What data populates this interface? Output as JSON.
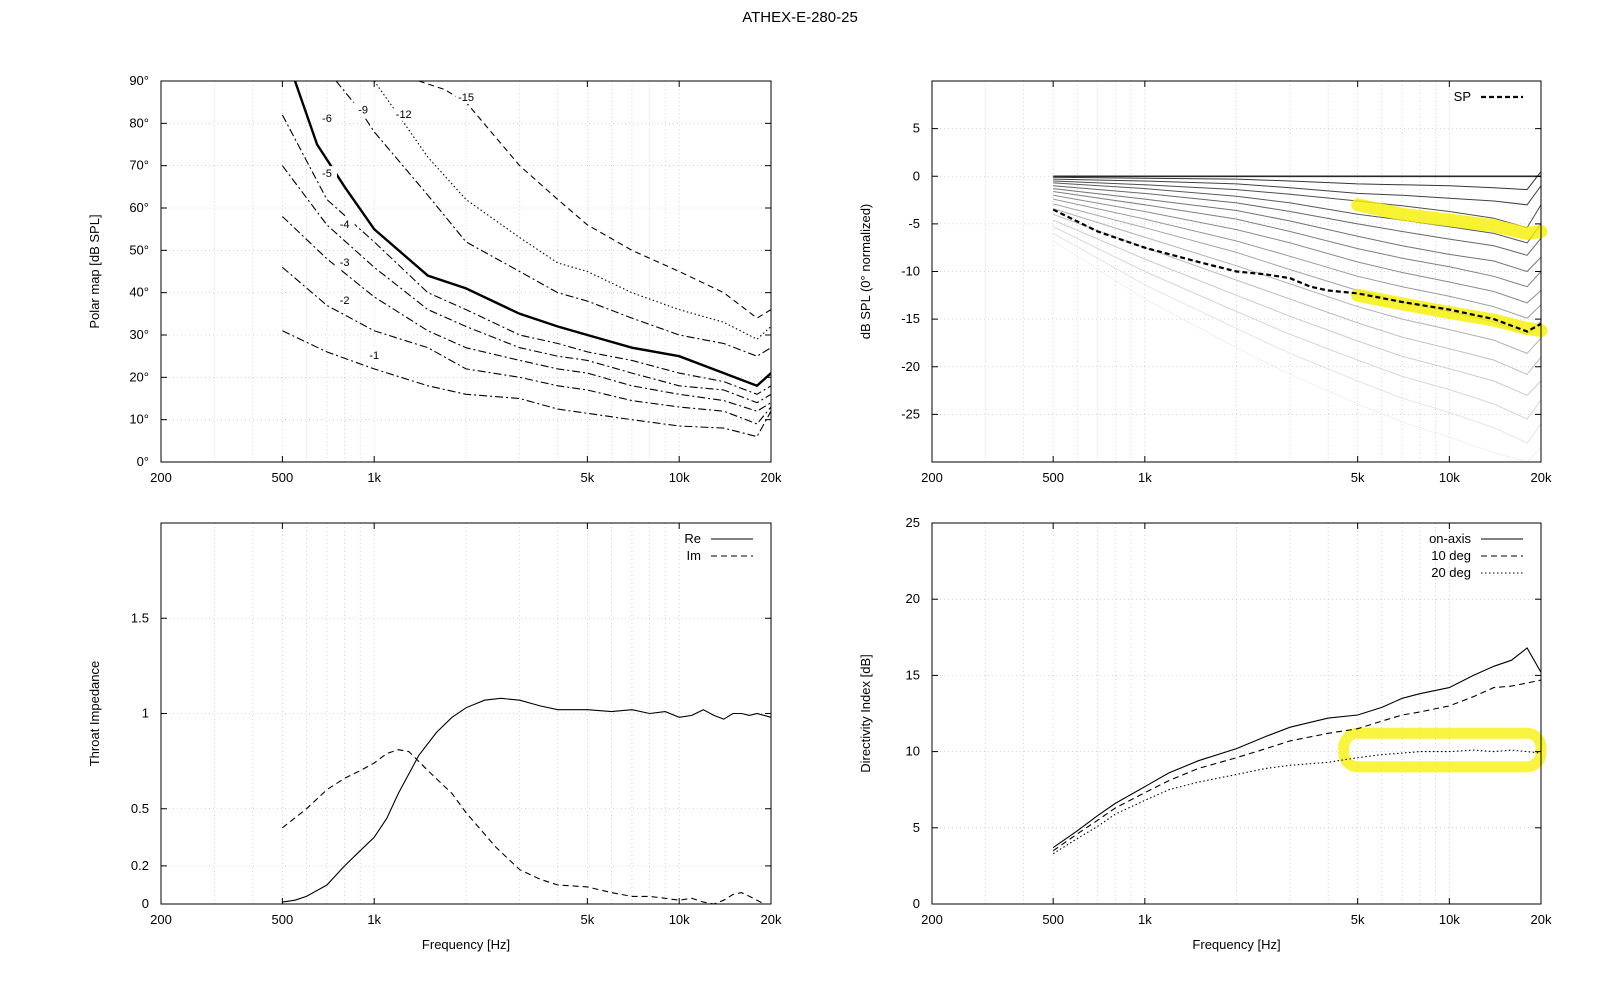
{
  "title": "ATHEX-E-280-25",
  "chart_data": [
    {
      "id": "polar",
      "type": "line",
      "xscale": "log",
      "xlim": [
        200,
        20000
      ],
      "ylim": [
        0,
        90
      ],
      "xticks": [
        200,
        500,
        1000,
        5000,
        10000,
        20000
      ],
      "xtick_labels": [
        "200",
        "500",
        "1k",
        "5k",
        "10k",
        "20k"
      ],
      "yticks": [
        0,
        10,
        20,
        30,
        40,
        50,
        60,
        70,
        80,
        90
      ],
      "ytick_labels": [
        "0°",
        "10°",
        "20°",
        "30°",
        "40°",
        "50°",
        "60°",
        "70°",
        "80°",
        "90°"
      ],
      "ylabel": "Polar map [dB SPL]",
      "xlabel": "",
      "grid": true,
      "series": [
        {
          "name": "-1",
          "label_at": [
            1000,
            25
          ],
          "style": "dashdot",
          "x": [
            500,
            700,
            1000,
            1500,
            2000,
            3000,
            4000,
            5000,
            7000,
            10000,
            14000,
            18000,
            20000
          ],
          "y": [
            31,
            26,
            22,
            18,
            16,
            15,
            12.5,
            11.5,
            10,
            8.5,
            8,
            6,
            12
          ]
        },
        {
          "name": "-2",
          "label_at": [
            800,
            38
          ],
          "style": "dashdot",
          "x": [
            500,
            700,
            1000,
            1500,
            2000,
            3000,
            4000,
            5000,
            7000,
            10000,
            14000,
            18000,
            20000
          ],
          "y": [
            46,
            37,
            31,
            27,
            22,
            20,
            18,
            17,
            14.5,
            13,
            12,
            9,
            13
          ]
        },
        {
          "name": "-3",
          "label_at": [
            800,
            47
          ],
          "style": "dashdot",
          "x": [
            500,
            700,
            1000,
            1500,
            2000,
            3000,
            4000,
            5000,
            7000,
            10000,
            14000,
            18000,
            20000
          ],
          "y": [
            58,
            48,
            39,
            31,
            27,
            24,
            22,
            21,
            18,
            16,
            14.5,
            12,
            14
          ]
        },
        {
          "name": "-4",
          "label_at": [
            800,
            56
          ],
          "style": "dashdot",
          "x": [
            500,
            700,
            1000,
            1500,
            2000,
            3000,
            4000,
            5000,
            7000,
            10000,
            14000,
            18000,
            20000
          ],
          "y": [
            70,
            56,
            46,
            36,
            32,
            27,
            25,
            24,
            21,
            18,
            17,
            14,
            16
          ]
        },
        {
          "name": "-5",
          "label_at": [
            700,
            68
          ],
          "style": "dashdot",
          "x": [
            500,
            700,
            1000,
            1500,
            2000,
            3000,
            4000,
            5000,
            7000,
            10000,
            14000,
            18000,
            20000
          ],
          "y": [
            82,
            62,
            52,
            40,
            36,
            30,
            28,
            26,
            24,
            21,
            19,
            16,
            18
          ]
        },
        {
          "name": "-6",
          "label_at": [
            700,
            81
          ],
          "style": "solid-bold",
          "x": [
            550,
            650,
            800,
            1000,
            1500,
            2000,
            3000,
            4000,
            5000,
            7000,
            10000,
            14000,
            18000,
            20000
          ],
          "y": [
            90,
            75,
            65,
            55,
            44,
            41,
            35,
            32,
            30,
            27,
            25,
            21,
            18,
            21
          ]
        },
        {
          "name": "-9",
          "label_at": [
            920,
            83
          ],
          "style": "dashdot",
          "x": [
            750,
            900,
            1000,
            1500,
            2000,
            3000,
            4000,
            5000,
            7000,
            10000,
            14000,
            18000,
            20000
          ],
          "y": [
            90,
            83,
            78,
            63,
            52,
            45,
            40,
            38,
            34,
            30,
            28,
            25,
            27
          ]
        },
        {
          "name": "-12",
          "label_at": [
            1250,
            82
          ],
          "style": "dotted",
          "x": [
            1000,
            1200,
            1500,
            2000,
            3000,
            4000,
            5000,
            7000,
            10000,
            14000,
            18000,
            20000
          ],
          "y": [
            90,
            82,
            72,
            62,
            53,
            47,
            45,
            40,
            36,
            33,
            29,
            32
          ]
        },
        {
          "name": "-15",
          "label_at": [
            2000,
            86
          ],
          "style": "dashed",
          "x": [
            1400,
            1700,
            2000,
            3000,
            4000,
            5000,
            7000,
            10000,
            14000,
            18000,
            20000
          ],
          "y": [
            90,
            88,
            85,
            70,
            62,
            56,
            50,
            45,
            40,
            34,
            36
          ]
        }
      ]
    },
    {
      "id": "spl",
      "type": "line",
      "xscale": "log",
      "xlim": [
        200,
        20000
      ],
      "ylim": [
        -30,
        10
      ],
      "xticks": [
        200,
        500,
        1000,
        5000,
        10000,
        20000
      ],
      "xtick_labels": [
        "200",
        "500",
        "1k",
        "5k",
        "10k",
        "20k"
      ],
      "yticks": [
        -25,
        -20,
        -15,
        -10,
        -5,
        0,
        5
      ],
      "ytick_labels": [
        "-25",
        "-20",
        "-15",
        "-10",
        "-5",
        "0",
        "5"
      ],
      "ylabel": "dB SPL (0° normalized)",
      "xlabel": "",
      "grid": true,
      "legend": "top-right",
      "fan_x": [
        500,
        1000,
        2000,
        3000,
        5000,
        7000,
        10000,
        14000,
        18000,
        20000
      ],
      "fan_series": [
        [
          0,
          0,
          0,
          0,
          0,
          0,
          0,
          0,
          0,
          0
        ],
        [
          -0.1,
          -0.2,
          -0.3,
          -0.5,
          -0.8,
          -0.9,
          -1.0,
          -1.2,
          -1.4,
          0.5
        ],
        [
          -0.3,
          -0.5,
          -0.8,
          -1.2,
          -1.8,
          -2.0,
          -2.3,
          -2.6,
          -3.0,
          -1.0
        ],
        [
          -0.5,
          -0.9,
          -1.4,
          -1.9,
          -2.6,
          -3.1,
          -3.7,
          -4.4,
          -5.4,
          -3.0
        ],
        [
          -0.7,
          -1.3,
          -2.1,
          -2.8,
          -4.0,
          -4.6,
          -5.3,
          -6.0,
          -7.0,
          -5.0
        ],
        [
          -1.0,
          -1.8,
          -2.8,
          -3.7,
          -5.0,
          -5.8,
          -6.6,
          -7.3,
          -8.3,
          -6.5
        ],
        [
          -1.3,
          -2.4,
          -3.6,
          -4.7,
          -6.3,
          -7.3,
          -8.2,
          -8.9,
          -10.0,
          -8.5
        ],
        [
          -1.6,
          -3.0,
          -4.5,
          -5.8,
          -7.6,
          -8.6,
          -9.5,
          -10.5,
          -11.6,
          -10.0
        ],
        [
          -2.0,
          -3.7,
          -5.6,
          -7.0,
          -9.0,
          -10.1,
          -11.1,
          -12.1,
          -13.3,
          -12.0
        ],
        [
          -2.4,
          -4.5,
          -6.8,
          -8.4,
          -10.5,
          -11.6,
          -12.6,
          -13.7,
          -14.9,
          -13.5
        ],
        [
          -2.9,
          -5.4,
          -8.0,
          -9.8,
          -12.0,
          -13.2,
          -14.2,
          -15.3,
          -16.6,
          -15.2
        ],
        [
          -3.4,
          -6.4,
          -9.4,
          -11.3,
          -13.7,
          -15.0,
          -16.1,
          -17.2,
          -18.6,
          -17.0
        ],
        [
          -4.0,
          -7.5,
          -10.9,
          -12.9,
          -15.4,
          -16.9,
          -18.1,
          -19.3,
          -20.8,
          -19.0
        ],
        [
          -4.6,
          -8.7,
          -12.5,
          -14.7,
          -17.3,
          -18.9,
          -20.2,
          -21.5,
          -23.0,
          -21.5
        ],
        [
          -5.3,
          -10.0,
          -14.2,
          -16.6,
          -19.3,
          -21.0,
          -22.4,
          -23.9,
          -25.5,
          -23.5
        ],
        [
          -6.0,
          -11.4,
          -16.0,
          -18.6,
          -21.5,
          -23.3,
          -24.8,
          -26.4,
          -28.0,
          -26.0
        ],
        [
          -6.8,
          -12.9,
          -18.0,
          -20.8,
          -23.9,
          -25.8,
          -27.4,
          -29.0,
          -30.0,
          -28.5
        ]
      ],
      "series": [
        {
          "name": "SP",
          "style": "dashed-bold",
          "x": [
            500,
            700,
            1000,
            1500,
            2000,
            2500,
            3000,
            3500,
            4000,
            5000,
            7000,
            10000,
            14000,
            18000,
            20000
          ],
          "y": [
            -3.5,
            -5.8,
            -7.5,
            -9.0,
            -10.0,
            -10.3,
            -10.7,
            -11.6,
            -12.0,
            -12.3,
            -13.2,
            -14.0,
            -15.0,
            -16.3,
            -15.5
          ]
        }
      ],
      "highlights": [
        {
          "color": "#f5f000",
          "x": [
            5000,
            7000,
            10000,
            14000,
            18000,
            20000
          ],
          "y": [
            -3.0,
            -4.0,
            -4.6,
            -5.2,
            -6.0,
            -5.8
          ]
        },
        {
          "color": "#f5f000",
          "x": [
            5000,
            7000,
            10000,
            14000,
            18000,
            20000
          ],
          "y": [
            -12.5,
            -13.4,
            -14.3,
            -15.1,
            -16.0,
            -16.2
          ]
        }
      ]
    },
    {
      "id": "impedance",
      "type": "line",
      "xscale": "log",
      "xlim": [
        200,
        20000
      ],
      "ylim": [
        0,
        2
      ],
      "xticks": [
        200,
        500,
        1000,
        5000,
        10000,
        20000
      ],
      "xtick_labels": [
        "200",
        "500",
        "1k",
        "5k",
        "10k",
        "20k"
      ],
      "yticks": [
        0,
        0.2,
        0.5,
        1,
        1.5
      ],
      "ytick_labels": [
        "0",
        "0.2",
        "0.5",
        "1",
        "1.5"
      ],
      "ylabel": "Throat Impedance",
      "xlabel": "Frequency [Hz]",
      "grid": true,
      "legend": "top-right",
      "series": [
        {
          "name": "Re",
          "style": "solid",
          "x": [
            500,
            550,
            600,
            700,
            800,
            900,
            1000,
            1100,
            1200,
            1400,
            1600,
            1800,
            2000,
            2300,
            2600,
            3000,
            3500,
            4000,
            5000,
            6000,
            7000,
            8000,
            9000,
            10000,
            11000,
            12000,
            13000,
            14000,
            15000,
            16000,
            17000,
            18000,
            20000
          ],
          "y": [
            0.01,
            0.02,
            0.04,
            0.1,
            0.2,
            0.28,
            0.35,
            0.45,
            0.58,
            0.78,
            0.9,
            0.98,
            1.03,
            1.07,
            1.08,
            1.07,
            1.04,
            1.02,
            1.02,
            1.01,
            1.02,
            1.0,
            1.01,
            0.98,
            0.99,
            1.02,
            0.99,
            0.97,
            1.0,
            1.0,
            0.99,
            1.0,
            0.98
          ]
        },
        {
          "name": "Im",
          "style": "dashed",
          "x": [
            500,
            600,
            700,
            800,
            900,
            1000,
            1100,
            1200,
            1300,
            1500,
            1800,
            2000,
            2500,
            3000,
            3500,
            4000,
            5000,
            6000,
            7000,
            8000,
            9000,
            10000,
            11000,
            12000,
            13000,
            14000,
            15000,
            16000,
            17000,
            18000,
            19000
          ],
          "y": [
            0.4,
            0.5,
            0.6,
            0.66,
            0.7,
            0.74,
            0.79,
            0.81,
            0.8,
            0.7,
            0.58,
            0.48,
            0.3,
            0.18,
            0.13,
            0.1,
            0.09,
            0.06,
            0.04,
            0.04,
            0.03,
            0.02,
            0.03,
            0.01,
            0.0,
            0.02,
            0.05,
            0.06,
            0.04,
            0.02,
            0.0
          ]
        }
      ]
    },
    {
      "id": "directivity",
      "type": "line",
      "xscale": "log",
      "xlim": [
        200,
        20000
      ],
      "ylim": [
        0,
        25
      ],
      "xticks": [
        200,
        500,
        1000,
        5000,
        10000,
        20000
      ],
      "xtick_labels": [
        "200",
        "500",
        "1k",
        "5k",
        "10k",
        "20k"
      ],
      "yticks": [
        0,
        5,
        10,
        15,
        20,
        25
      ],
      "ytick_labels": [
        "0",
        "5",
        "10",
        "15",
        "20",
        "25"
      ],
      "ylabel": "Directivity Index [dB]",
      "xlabel": "Frequency [Hz]",
      "grid": true,
      "legend": "top-right",
      "series": [
        {
          "name": "on-axis",
          "style": "solid",
          "x": [
            500,
            600,
            700,
            800,
            1000,
            1200,
            1500,
            2000,
            2500,
            3000,
            4000,
            5000,
            6000,
            7000,
            8000,
            10000,
            12000,
            14000,
            16000,
            18000,
            20000
          ],
          "y": [
            3.7,
            4.8,
            5.8,
            6.6,
            7.7,
            8.6,
            9.4,
            10.2,
            11.0,
            11.6,
            12.2,
            12.4,
            12.9,
            13.5,
            13.8,
            14.2,
            15.0,
            15.6,
            16.0,
            16.8,
            15.2
          ]
        },
        {
          "name": "10 deg",
          "style": "dashed",
          "x": [
            500,
            600,
            700,
            800,
            1000,
            1200,
            1500,
            2000,
            2500,
            3000,
            4000,
            5000,
            6000,
            7000,
            8000,
            10000,
            12000,
            14000,
            16000,
            18000,
            20000
          ],
          "y": [
            3.5,
            4.6,
            5.5,
            6.3,
            7.3,
            8.1,
            8.9,
            9.6,
            10.2,
            10.7,
            11.2,
            11.5,
            12.0,
            12.4,
            12.6,
            13.0,
            13.6,
            14.2,
            14.3,
            14.5,
            14.7
          ]
        },
        {
          "name": "20 deg",
          "style": "dotted",
          "x": [
            500,
            600,
            700,
            800,
            1000,
            1200,
            1500,
            2000,
            2500,
            3000,
            4000,
            5000,
            6000,
            7000,
            8000,
            10000,
            12000,
            14000,
            16000,
            18000,
            20000
          ],
          "y": [
            3.3,
            4.3,
            5.1,
            5.9,
            6.8,
            7.5,
            8.0,
            8.5,
            8.9,
            9.1,
            9.3,
            9.6,
            9.8,
            9.9,
            10.0,
            10.0,
            10.1,
            10.0,
            10.1,
            10.0,
            9.9
          ]
        }
      ],
      "highlights": [
        {
          "color": "#f5f000",
          "shape": "ring",
          "xlim": [
            4500,
            20000
          ],
          "ylim": [
            9.0,
            11.2
          ]
        }
      ]
    }
  ]
}
